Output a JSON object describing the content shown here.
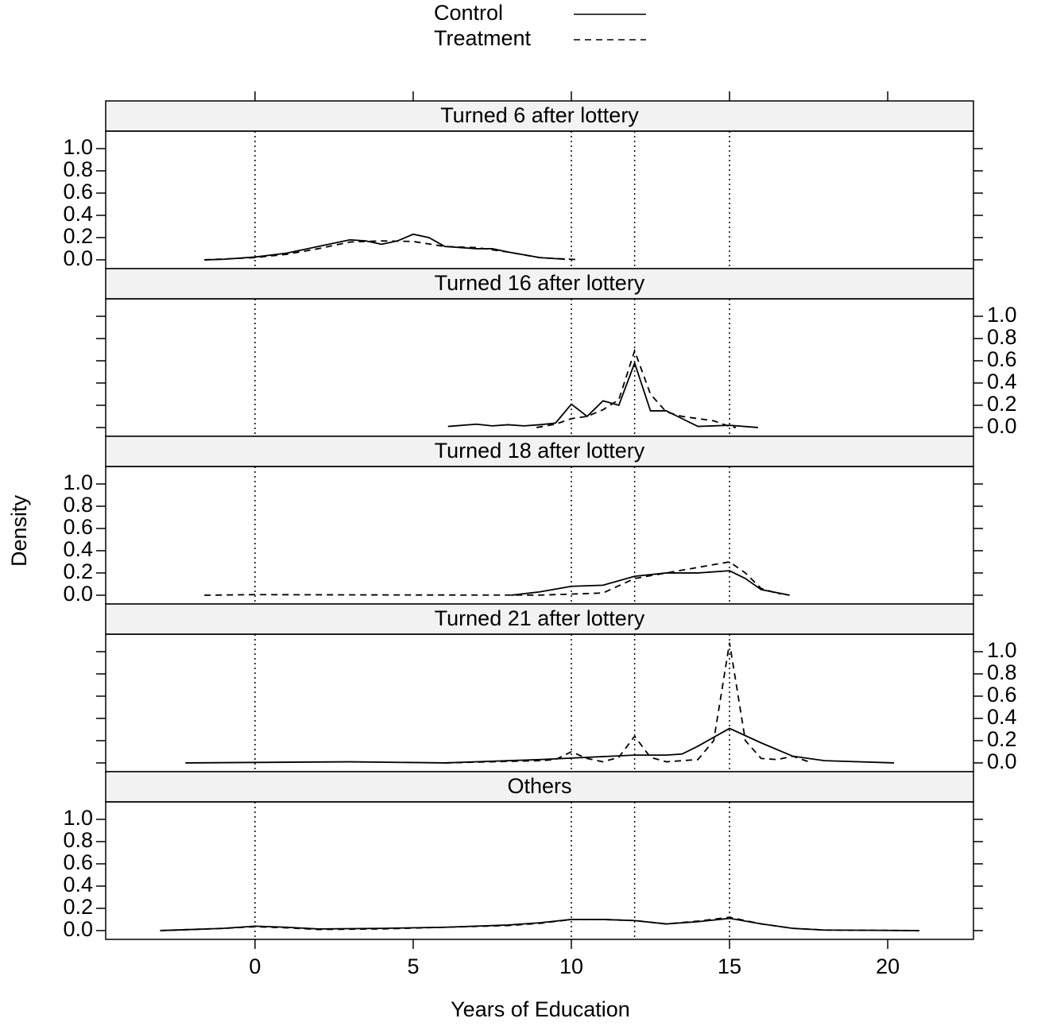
{
  "chart_data": {
    "type": "line",
    "xlabel": "Years of Education",
    "ylabel": "Density",
    "xlim": [
      -4.72,
      22.71
    ],
    "xticks": [
      0,
      5,
      10,
      15,
      20
    ],
    "ylim": [
      -0.079,
      1.157
    ],
    "yticks": [
      {
        "value": 0,
        "label": "0.0"
      },
      {
        "value": 0.2,
        "label": "0.2"
      },
      {
        "value": 0.4,
        "label": "0.4"
      },
      {
        "value": 0.6,
        "label": "0.6"
      },
      {
        "value": 0.8,
        "label": "0.8"
      },
      {
        "value": 1,
        "label": "1.0"
      }
    ],
    "vlines": [
      0,
      10,
      12,
      15
    ],
    "color": "#000000",
    "legend": [
      {
        "name": "Control",
        "dash": "solid"
      },
      {
        "name": "Treatment",
        "dash": "dashed"
      }
    ],
    "panels": [
      {
        "title": "Turned 6 after lottery",
        "series": [
          {
            "x": [
              -1.6,
              -1,
              0,
              1,
              2,
              3,
              3.5,
              4,
              4.5,
              5,
              5.5,
              6,
              7,
              7.5,
              8,
              9,
              9.8
            ],
            "values": [
              0,
              0.005,
              0.025,
              0.06,
              0.12,
              0.18,
              0.17,
              0.14,
              0.17,
              0.23,
              0.2,
              0.12,
              0.1,
              0.1,
              0.07,
              0.02,
              0.005
            ]
          },
          {
            "x": [
              -1.6,
              0,
              1,
              2,
              3,
              4,
              5,
              6,
              7,
              8,
              9,
              10,
              10.2
            ],
            "values": [
              0,
              0.02,
              0.05,
              0.1,
              0.16,
              0.17,
              0.165,
              0.12,
              0.11,
              0.07,
              0.02,
              0.005,
              0.002
            ]
          }
        ]
      },
      {
        "title": "Turned 16 after lottery",
        "series": [
          {
            "x": [
              6.1,
              7,
              7.5,
              8,
              8.5,
              9,
              9.5,
              10,
              10.5,
              11,
              11.5,
              12,
              12.5,
              13,
              13.5,
              14,
              15,
              15.9
            ],
            "values": [
              0.01,
              0.03,
              0.015,
              0.025,
              0.015,
              0.025,
              0.04,
              0.21,
              0.1,
              0.24,
              0.2,
              0.58,
              0.15,
              0.15,
              0.08,
              0.01,
              0.02,
              0
            ]
          },
          {
            "x": [
              8.9,
              9.5,
              10,
              10.5,
              11,
              11.5,
              12,
              12.5,
              13,
              13.5,
              14,
              14.5,
              15,
              15.2
            ],
            "values": [
              0,
              0.03,
              0.08,
              0.1,
              0.16,
              0.25,
              0.69,
              0.3,
              0.14,
              0.1,
              0.08,
              0.06,
              0.01,
              0
            ]
          }
        ]
      },
      {
        "title": "Turned 18 after lottery",
        "series": [
          {
            "x": [
              8.1,
              9,
              10,
              11,
              12,
              13,
              14,
              15,
              15.5,
              16,
              16.9
            ],
            "values": [
              0,
              0.03,
              0.08,
              0.09,
              0.17,
              0.2,
              0.2,
              0.22,
              0.15,
              0.05,
              0
            ]
          },
          {
            "x": [
              -1.6,
              0,
              5,
              9,
              10,
              11,
              12,
              13,
              14,
              15,
              15.5,
              16,
              16.6
            ],
            "values": [
              0,
              0.005,
              0.002,
              0.001,
              0.01,
              0.02,
              0.15,
              0.2,
              0.25,
              0.3,
              0.2,
              0.06,
              0.01
            ]
          }
        ]
      },
      {
        "title": "Turned 21 after lottery",
        "series": [
          {
            "x": [
              -2.2,
              3,
              6,
              9,
              12,
              13,
              13.5,
              14,
              15,
              16,
              17,
              18,
              20.2
            ],
            "values": [
              0,
              0.01,
              0,
              0.03,
              0.07,
              0.07,
              0.08,
              0.15,
              0.31,
              0.18,
              0.06,
              0.02,
              0
            ]
          },
          {
            "x": [
              6,
              9,
              9.5,
              10,
              10.5,
              11,
              11.5,
              12,
              12.5,
              13,
              14,
              14.5,
              15,
              15.5,
              16,
              16.5,
              17,
              17.5
            ],
            "values": [
              0,
              0.02,
              0.03,
              0.1,
              0.04,
              0.01,
              0.05,
              0.24,
              0.05,
              0.01,
              0.03,
              0.2,
              1.08,
              0.2,
              0.04,
              0.03,
              0.06,
              0.01
            ]
          }
        ]
      },
      {
        "title": "Others",
        "series": [
          {
            "x": [
              -3,
              -1,
              0,
              1,
              2,
              4,
              6,
              8,
              9,
              10,
              11,
              12,
              13,
              14,
              15,
              16,
              17,
              18,
              21
            ],
            "values": [
              0,
              0.02,
              0.04,
              0.03,
              0.015,
              0.02,
              0.03,
              0.05,
              0.07,
              0.1,
              0.1,
              0.09,
              0.06,
              0.08,
              0.11,
              0.06,
              0.02,
              0.005,
              0
            ]
          },
          {
            "x": [
              -3,
              -1,
              0,
              1,
              2,
              4,
              6,
              8,
              9,
              10,
              11,
              12,
              13,
              14,
              15,
              16,
              17,
              18,
              21
            ],
            "values": [
              0,
              0.02,
              0.035,
              0.025,
              0.01,
              0.015,
              0.03,
              0.045,
              0.065,
              0.1,
              0.1,
              0.09,
              0.06,
              0.085,
              0.12,
              0.06,
              0.02,
              0.005,
              0
            ]
          }
        ]
      }
    ]
  }
}
